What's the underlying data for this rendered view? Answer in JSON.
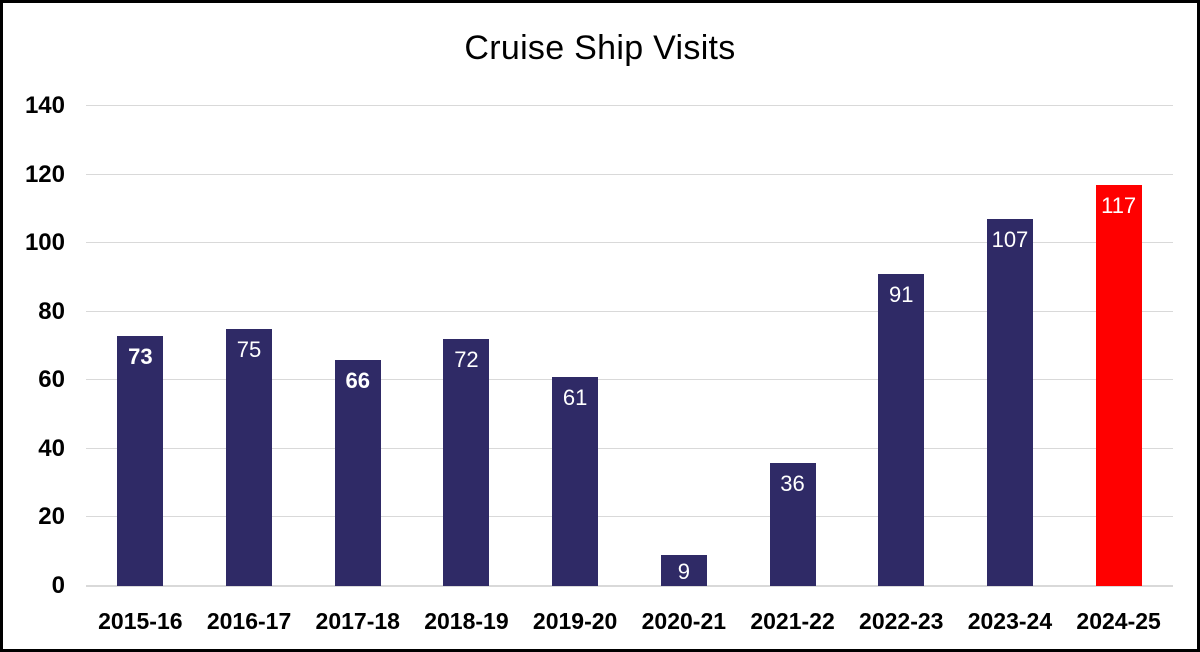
{
  "chart_data": {
    "type": "bar",
    "title": "Cruise Ship Visits",
    "categories": [
      "2015-16",
      "2016-17",
      "2017-18",
      "2018-19",
      "2019-20",
      "2020-21",
      "2021-22",
      "2022-23",
      "2023-24",
      "2024-25"
    ],
    "values": [
      73,
      75,
      66,
      72,
      61,
      9,
      36,
      91,
      107,
      117
    ],
    "bar_colors": [
      "#2F2A66",
      "#2F2A66",
      "#2F2A66",
      "#2F2A66",
      "#2F2A66",
      "#2F2A66",
      "#2F2A66",
      "#2F2A66",
      "#2F2A66",
      "#FF0000"
    ],
    "default_bar_color": "#2F2A66",
    "highlight_bar_color": "#FF0000",
    "highlight_index": 9,
    "label_bold": [
      true,
      false,
      true,
      false,
      false,
      false,
      false,
      false,
      false,
      false
    ],
    "data_label_color": "#ffffff",
    "xlabel": "",
    "ylabel": "",
    "ylim": [
      0,
      140
    ],
    "yticks": [
      0,
      20,
      40,
      60,
      80,
      100,
      120,
      140
    ],
    "grid": "horizontal",
    "gridline_color": "#D9D9D9",
    "legend_position": "none",
    "frame_border_color": "#000000",
    "background_color": "#ffffff",
    "axis_text_color": "#000000"
  }
}
